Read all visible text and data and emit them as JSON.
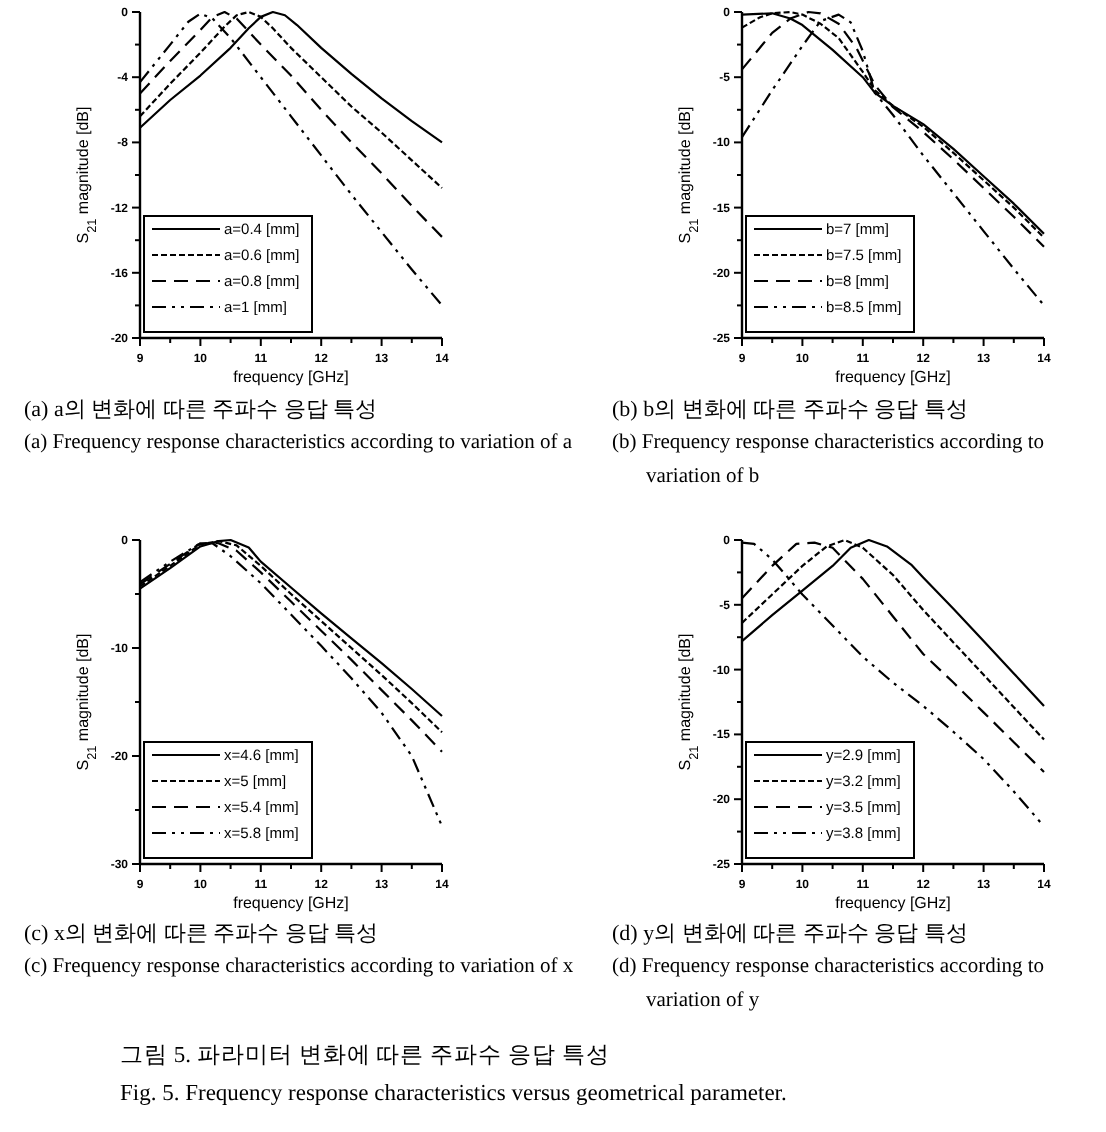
{
  "chart_data": [
    {
      "type": "line",
      "title": "(a) a의 변화에 따른 주파수 응답 특성",
      "subtitle": "(a) Frequency response characteristics according to variation of a",
      "xlabel": "frequency [GHz]",
      "ylabel": "S$_{21}$ magnitude [dB]",
      "xlim": [
        9,
        14
      ],
      "ylim": [
        -20,
        0
      ],
      "xticks": [
        9,
        {
          "value": 9.5,
          "label": null
        },
        10,
        {
          "value": 10.5,
          "label": null
        },
        11,
        {
          "value": 11.5,
          "label": null
        },
        12,
        {
          "value": 12.5,
          "label": null
        },
        13,
        {
          "value": 13.5,
          "label": null
        },
        14
      ],
      "yticks": [
        -20,
        {
          "value": -18,
          "label": null
        },
        -16,
        {
          "value": -14,
          "label": null
        },
        -12,
        {
          "value": -10,
          "label": null
        },
        -8,
        {
          "value": -6,
          "label": null
        },
        -4,
        {
          "value": -2,
          "label": null
        },
        0
      ],
      "legend": "bottom left",
      "series": [
        {
          "name": "a=0.4 [mm]",
          "color": "#000000",
          "line_style": "solid",
          "x": [
            9,
            9.5,
            10,
            10.5,
            10.8,
            11,
            11.2,
            11.4,
            11.6,
            12,
            12.5,
            13,
            13.5,
            14
          ],
          "values": [
            -7.1,
            -5.4,
            -3.9,
            -2.2,
            -1.0,
            -0.3,
            0,
            -0.2,
            -0.8,
            -2.2,
            -3.8,
            -5.3,
            -6.7,
            -8.0
          ]
        },
        {
          "name": "a=0.6 [mm]",
          "color": "#000000",
          "line_style": "dotted",
          "x": [
            9,
            9.5,
            10,
            10.4,
            10.6,
            10.8,
            11,
            11.2,
            11.5,
            12,
            12.5,
            13,
            13.5,
            14
          ],
          "values": [
            -6.4,
            -4.4,
            -2.5,
            -0.9,
            -0.2,
            0,
            -0.3,
            -1.0,
            -2.2,
            -4.0,
            -5.8,
            -7.4,
            -9.1,
            -10.8
          ]
        },
        {
          "name": "a=0.8 [mm]",
          "color": "#000000",
          "line_style": "dashed",
          "x": [
            9,
            9.5,
            10,
            10.2,
            10.4,
            10.6,
            10.8,
            11,
            11.5,
            12,
            12.5,
            13,
            13.5,
            14
          ],
          "values": [
            -5.0,
            -3.0,
            -1.1,
            -0.3,
            0,
            -0.4,
            -1.2,
            -2.0,
            -3.9,
            -6.0,
            -8.0,
            -9.9,
            -11.9,
            -13.8
          ]
        },
        {
          "name": "a=1 [mm]",
          "color": "#000000",
          "line_style": "dashdot",
          "x": [
            9,
            9.5,
            9.8,
            10,
            10.2,
            10.5,
            11,
            11.5,
            12,
            12.5,
            13,
            13.5,
            14
          ],
          "values": [
            -4.3,
            -2.0,
            -0.6,
            -0.1,
            -0.4,
            -1.6,
            -4.0,
            -6.4,
            -8.8,
            -11.2,
            -13.5,
            -15.8,
            -18.0
          ]
        }
      ]
    },
    {
      "type": "line",
      "title": "(b) b의 변화에 따른 주파수 응답 특성",
      "subtitle": "(b) Frequency response characteristics according to variation of b",
      "xlabel": "frequency [GHz]",
      "ylabel": "S$_{21}$ magnitude [dB]",
      "xlim": [
        9,
        14
      ],
      "ylim": [
        -25,
        0
      ],
      "xticks": [
        9,
        {
          "value": 9.5,
          "label": null
        },
        10,
        {
          "value": 10.5,
          "label": null
        },
        11,
        {
          "value": 11.5,
          "label": null
        },
        12,
        {
          "value": 12.5,
          "label": null
        },
        13,
        {
          "value": 13.5,
          "label": null
        },
        14
      ],
      "yticks": [
        -25,
        {
          "value": -22.5,
          "label": null
        },
        -20,
        {
          "value": -17.5,
          "label": null
        },
        -15,
        {
          "value": -12.5,
          "label": null
        },
        -10,
        {
          "value": -7.5,
          "label": null
        },
        -5,
        {
          "value": -2.5,
          "label": null
        },
        0
      ],
      "legend": "bottom left",
      "series": [
        {
          "name": "b=7 [mm]",
          "color": "#000000",
          "line_style": "solid",
          "x": [
            9,
            9.5,
            9.8,
            10,
            10.5,
            11,
            11.2,
            11.5,
            12,
            12.5,
            13,
            13.5,
            14
          ],
          "values": [
            -0.2,
            -0.1,
            -0.5,
            -1.0,
            -2.9,
            -5.0,
            -6.2,
            -7.2,
            -8.6,
            -10.5,
            -12.6,
            -14.7,
            -17.0
          ]
        },
        {
          "name": "b=7.5 [mm]",
          "color": "#000000",
          "line_style": "dotted",
          "x": [
            9,
            9.3,
            9.5,
            9.8,
            10,
            10.3,
            10.6,
            11,
            11.2,
            11.5,
            12,
            12.5,
            13,
            13.5,
            14
          ],
          "values": [
            -1.2,
            -0.4,
            -0.1,
            0,
            -0.2,
            -0.9,
            -2.0,
            -4.6,
            -6.0,
            -7.2,
            -8.8,
            -10.8,
            -12.9,
            -15.0,
            -17.3
          ]
        },
        {
          "name": "b=8 [mm]",
          "color": "#000000",
          "line_style": "dashed",
          "x": [
            9,
            9.5,
            9.8,
            10.1,
            10.3,
            10.6,
            10.9,
            11.2,
            11.5,
            12,
            12.5,
            13,
            13.5,
            14
          ],
          "values": [
            -4.4,
            -1.6,
            -0.5,
            0,
            -0.1,
            -0.9,
            -2.8,
            -5.6,
            -7.3,
            -9.2,
            -11.3,
            -13.5,
            -15.7,
            -18.0
          ]
        },
        {
          "name": "b=8.5 [mm]",
          "color": "#000000",
          "line_style": "dashdot",
          "x": [
            9,
            9.5,
            10,
            10.3,
            10.6,
            10.8,
            11,
            11.2,
            11.5,
            12,
            12.5,
            13,
            13.5,
            14
          ],
          "values": [
            -9.6,
            -6.0,
            -2.6,
            -0.7,
            -0.2,
            -0.8,
            -3.0,
            -6.2,
            -7.9,
            -11.0,
            -13.9,
            -16.8,
            -19.7,
            -22.5
          ]
        }
      ]
    },
    {
      "type": "line",
      "title": "(c) x의 변화에 따른 주파수 응답 특성",
      "subtitle": "(c) Frequency response characteristics according to variation of x",
      "xlabel": "frequency [GHz]",
      "ylabel": "S$_{21}$ magnitude [dB]",
      "xlim": [
        9,
        14
      ],
      "ylim": [
        -30,
        0
      ],
      "xticks": [
        9,
        {
          "value": 9.5,
          "label": null
        },
        10,
        {
          "value": 10.5,
          "label": null
        },
        11,
        {
          "value": 11.5,
          "label": null
        },
        12,
        {
          "value": 12.5,
          "label": null
        },
        13,
        {
          "value": 13.5,
          "label": null
        },
        14
      ],
      "yticks": [
        -30,
        {
          "value": -25,
          "label": null
        },
        -20,
        {
          "value": -15,
          "label": null
        },
        -10,
        {
          "value": -5,
          "label": null
        },
        0
      ],
      "legend": "bottom left",
      "series": [
        {
          "name": "x=4.6 [mm]",
          "color": "#000000",
          "line_style": "solid",
          "x": [
            9,
            9.5,
            10,
            10.3,
            10.5,
            10.8,
            11,
            11.5,
            12,
            12.5,
            13,
            13.5,
            14
          ],
          "values": [
            -4.5,
            -2.6,
            -0.6,
            -0.1,
            0,
            -0.7,
            -2.0,
            -4.4,
            -6.8,
            -9.1,
            -11.4,
            -13.8,
            -16.3
          ]
        },
        {
          "name": "x=5 [mm]",
          "color": "#000000",
          "line_style": "dotted",
          "x": [
            9,
            9.5,
            10,
            10.3,
            10.6,
            11,
            11.5,
            12,
            12.5,
            13,
            13.5,
            14
          ],
          "values": [
            -4.3,
            -2.4,
            -0.4,
            -0.1,
            -0.5,
            -2.4,
            -5.0,
            -7.5,
            -10.0,
            -12.5,
            -15.1,
            -17.8
          ]
        },
        {
          "name": "x=5.4 [mm]",
          "color": "#000000",
          "line_style": "dashed",
          "x": [
            9,
            9.5,
            10,
            10.3,
            10.6,
            11,
            11.5,
            12,
            12.5,
            13,
            13.5,
            14
          ],
          "values": [
            -4.1,
            -2.2,
            -0.3,
            -0.3,
            -1.0,
            -3.0,
            -5.7,
            -8.4,
            -11.1,
            -13.9,
            -16.7,
            -19.6
          ]
        },
        {
          "name": "x=5.8 [mm]",
          "color": "#000000",
          "line_style": "dashdot",
          "x": [
            9,
            9.5,
            10,
            10.2,
            10.5,
            11,
            11.5,
            12,
            12.5,
            13,
            13.5,
            14
          ],
          "values": [
            -3.9,
            -2.0,
            -0.3,
            -0.3,
            -1.5,
            -4.0,
            -6.9,
            -9.8,
            -12.8,
            -16.0,
            -20.0,
            -26.5
          ]
        }
      ]
    },
    {
      "type": "line",
      "title": "(d) y의 변화에 따른 주파수 응답 특성",
      "subtitle": "(d) Frequency response characteristics according to variation of y",
      "xlabel": "frequency [GHz]",
      "ylabel": "S$_{21}$ magnitude [dB]",
      "xlim": [
        9,
        14
      ],
      "ylim": [
        -25,
        0
      ],
      "xticks": [
        9,
        {
          "value": 9.5,
          "label": null
        },
        10,
        {
          "value": 10.5,
          "label": null
        },
        11,
        {
          "value": 11.5,
          "label": null
        },
        12,
        {
          "value": 12.5,
          "label": null
        },
        13,
        {
          "value": 13.5,
          "label": null
        },
        14
      ],
      "yticks": [
        -25,
        {
          "value": -22.5,
          "label": null
        },
        -20,
        {
          "value": -17.5,
          "label": null
        },
        -15,
        {
          "value": -12.5,
          "label": null
        },
        -10,
        {
          "value": -7.5,
          "label": null
        },
        -5,
        {
          "value": -2.5,
          "label": null
        },
        0
      ],
      "legend": "bottom left",
      "annotations": [
        "그림 5. 파라미터 변화에 따른 주파수 응답 특성",
        "Fig. 5. Frequency response characteristics versus geometrical parameter."
      ],
      "series": [
        {
          "name": "y=2.9 [mm]",
          "color": "#000000",
          "line_style": "solid",
          "x": [
            9,
            9.5,
            10,
            10.5,
            10.8,
            11.1,
            11.4,
            11.8,
            12,
            12.5,
            13,
            13.5,
            14
          ],
          "values": [
            -7.8,
            -5.8,
            -3.9,
            -2.0,
            -0.6,
            0,
            -0.5,
            -1.9,
            -2.9,
            -5.3,
            -7.8,
            -10.3,
            -12.8
          ]
        },
        {
          "name": "y=3.2 [mm]",
          "color": "#000000",
          "line_style": "dotted",
          "x": [
            9,
            9.5,
            10,
            10.4,
            10.7,
            11,
            11.5,
            12,
            12.5,
            13,
            13.5,
            14
          ],
          "values": [
            -6.4,
            -4.2,
            -2.0,
            -0.5,
            0,
            -0.6,
            -2.7,
            -5.4,
            -7.9,
            -10.4,
            -12.9,
            -15.4
          ]
        },
        {
          "name": "y=3.5 [mm]",
          "color": "#000000",
          "line_style": "dashed",
          "x": [
            9,
            9.5,
            9.9,
            10.2,
            10.5,
            11,
            11.5,
            12,
            12.5,
            13,
            13.5,
            14
          ],
          "values": [
            -4.5,
            -2.0,
            -0.3,
            -0.2,
            -0.6,
            -3.0,
            -5.9,
            -8.8,
            -11.0,
            -13.3,
            -15.6,
            -17.9
          ]
        },
        {
          "name": "y=3.8 [mm]",
          "color": "#000000",
          "line_style": "dashdot",
          "x": [
            9,
            9.2,
            9.5,
            10,
            10.5,
            11,
            11.5,
            12,
            12.5,
            13,
            13.5,
            14
          ],
          "values": [
            -0.2,
            -0.3,
            -1.5,
            -4.2,
            -6.6,
            -9.0,
            -11.0,
            -12.8,
            -14.8,
            -16.9,
            -19.4,
            -22.1
          ]
        }
      ]
    }
  ]
}
